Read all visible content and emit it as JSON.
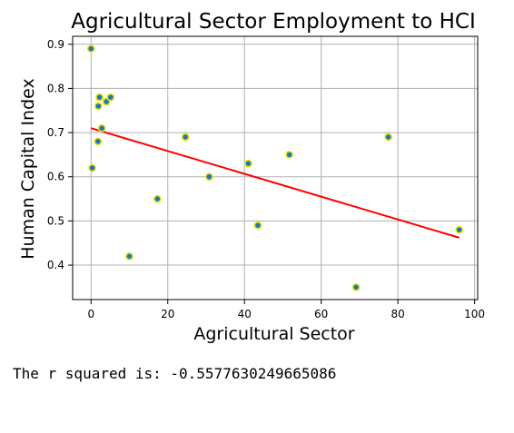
{
  "chart_data": {
    "type": "scatter",
    "title": "Agricultural Sector Employment to HCI",
    "xlabel": "Agricultural Sector",
    "ylabel": "Human Capital Index",
    "xlim": [
      -4.8,
      100.8
    ],
    "ylim": [
      0.322,
      0.918
    ],
    "xticks": [
      0,
      20,
      40,
      60,
      80,
      100
    ],
    "yticks": [
      0.4,
      0.5,
      0.6,
      0.7,
      0.8,
      0.9
    ],
    "grid": true,
    "points": [
      {
        "x": 0.0,
        "y": 0.89
      },
      {
        "x": 0.3,
        "y": 0.62
      },
      {
        "x": 1.8,
        "y": 0.68
      },
      {
        "x": 1.9,
        "y": 0.76
      },
      {
        "x": 2.2,
        "y": 0.78
      },
      {
        "x": 2.8,
        "y": 0.71
      },
      {
        "x": 4.0,
        "y": 0.77
      },
      {
        "x": 5.1,
        "y": 0.78
      },
      {
        "x": 10.0,
        "y": 0.42
      },
      {
        "x": 17.3,
        "y": 0.55
      },
      {
        "x": 24.6,
        "y": 0.69
      },
      {
        "x": 30.8,
        "y": 0.6
      },
      {
        "x": 41.0,
        "y": 0.63
      },
      {
        "x": 43.5,
        "y": 0.49
      },
      {
        "x": 51.7,
        "y": 0.65
      },
      {
        "x": 69.1,
        "y": 0.35
      },
      {
        "x": 77.5,
        "y": 0.69
      },
      {
        "x": 96.0,
        "y": 0.48
      }
    ],
    "regression_line": {
      "x": [
        0.0,
        96.0
      ],
      "y": [
        0.71,
        0.462
      ]
    },
    "colors": {
      "marker_fill": "#1f77b4",
      "marker_edge": "#e5e515",
      "line": "#ff0000"
    }
  },
  "output_text": "The r squared is: -0.5577630249665086"
}
